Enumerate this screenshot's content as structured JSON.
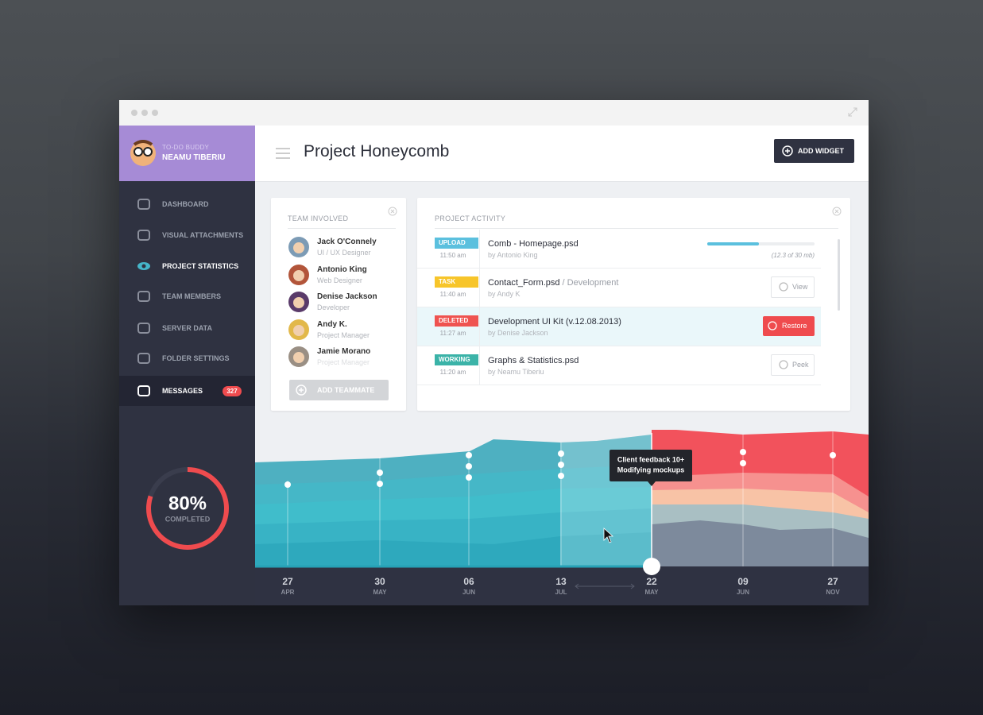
{
  "sidebar": {
    "app_name": "TO-DO BUDDY",
    "user": "NEAMU TIBERIU",
    "menu": [
      {
        "label": "DASHBOARD"
      },
      {
        "label": "VISUAL ATTACHMENTS"
      },
      {
        "label": "PROJECT STATISTICS"
      },
      {
        "label": "TEAM MEMBERS"
      },
      {
        "label": "SERVER DATA"
      },
      {
        "label": "FOLDER SETTINGS"
      },
      {
        "label": "MESSAGES",
        "badge": 327
      }
    ],
    "progress": {
      "value": 80,
      "label": "80%"
    },
    "progress_caption": "COMPLETED"
  },
  "header": {
    "title": "Project Honeycomb",
    "button": "ADD WIDGET"
  },
  "team": {
    "title": "TEAM INVOLVED",
    "members": [
      {
        "name": "Jack O'Connely",
        "role": "UI / UX Designer"
      },
      {
        "name": "Antonio King",
        "role": "Web Designer"
      },
      {
        "name": "Denise Jackson",
        "role": "Developer"
      },
      {
        "name": "Andy K.",
        "role": "Project Manager"
      },
      {
        "name": "Jamie Morano",
        "role": "Project Manager"
      }
    ],
    "button": "ADD TEAMMATE"
  },
  "activity": {
    "title": "PROJECT ACTIVITY",
    "items": [
      {
        "tag": "UPLOAD",
        "time": "11:50 am",
        "file": "Comb - Homepage.psd",
        "by": "by Antonio King",
        "progress": "(12.3 of 30 mb)"
      },
      {
        "tag": "TASK",
        "time": "11:40 am",
        "file": "Contact_Form.psd",
        "folder": "/ Development",
        "by": "by Andy K",
        "action": "View"
      },
      {
        "tag": "DELETED",
        "time": "11:27 am",
        "file": "Development UI Kit (v.12.08.2013)",
        "by": "by Denise Jackson",
        "action": "Restore"
      },
      {
        "tag": "WORKING",
        "time": "11:20 am",
        "file": "Graphs & Statistics.psd",
        "by": "by Neamu Tiberiu",
        "action": "Peek"
      }
    ]
  },
  "timeline": {
    "dates": [
      {
        "day": "27",
        "month": "APR"
      },
      {
        "day": "30",
        "month": "MAY"
      },
      {
        "day": "06",
        "month": "JUN"
      },
      {
        "day": "13",
        "month": "JUL"
      },
      {
        "day": "22",
        "month": "MAY"
      },
      {
        "day": "09",
        "month": "JUN"
      },
      {
        "day": "27",
        "month": "NOV"
      }
    ],
    "tooltip": [
      "Client feedback 10+",
      "Modifying mockups"
    ]
  }
}
